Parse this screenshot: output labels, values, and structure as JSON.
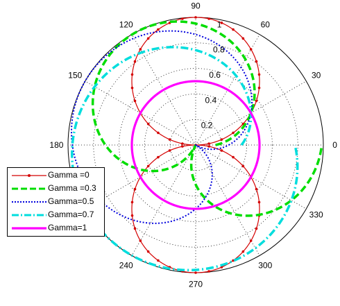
{
  "chart_data": {
    "type": "polar-line",
    "theta_ticks_deg": [
      0,
      30,
      60,
      90,
      120,
      150,
      180,
      240,
      270,
      300,
      330
    ],
    "r_ticks": [
      "0.2",
      "0.4",
      "0.6",
      "0.8",
      "1"
    ],
    "rlim": [
      0,
      1
    ],
    "grid": true,
    "legend_position": "bottom-left",
    "series": [
      {
        "name": "Gamma =0",
        "gamma": 0.0,
        "color": "#d40000",
        "style": "solid-dot-marker"
      },
      {
        "name": "Gamma =0.3",
        "gamma": 0.3,
        "color": "#00dd00",
        "style": "dashed"
      },
      {
        "name": "Gamma=0.5",
        "gamma": 0.5,
        "color": "#0000dd",
        "style": "dotted"
      },
      {
        "name": "Gamma=0.7",
        "gamma": 0.7,
        "color": "#00dddd",
        "style": "dash-dot"
      },
      {
        "name": "Gamma=1",
        "gamma": 1.0,
        "color": "#ff00ff",
        "style": "solid-thick"
      }
    ],
    "curve_model": {
      "formula": "r = |sin(theta + gamma*(pi/6 - theta))|",
      "theta_range_deg": [
        0,
        360
      ]
    }
  }
}
